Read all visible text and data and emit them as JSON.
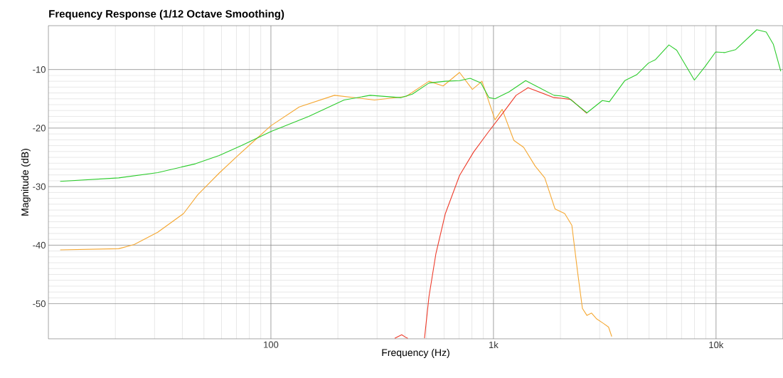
{
  "chart_data": {
    "type": "line",
    "title": "Frequency Response (1/12 Octave Smoothing)",
    "xlabel": "Frequency (Hz)",
    "ylabel": "Magnitude (dB)",
    "log": "x",
    "grid": true,
    "marker": "none",
    "line_style": "solid",
    "xlim": [
      10,
      20000
    ],
    "ylim": [
      -56,
      -2.5
    ],
    "xticks": [
      {
        "value": 100,
        "label": "100"
      },
      {
        "value": 1000,
        "label": "1k"
      },
      {
        "value": 10000,
        "label": "10k"
      }
    ],
    "yticks": [
      -50,
      -40,
      -30,
      -20,
      -10
    ],
    "series": [
      {
        "color": "#f5a833",
        "x": [
          11.3,
          20.7,
          24.3,
          31,
          40.5,
          46.9,
          58.5,
          71,
          82.3,
          100,
          134,
          193,
          292,
          405,
          513,
          594,
          704,
          804,
          888,
          1016,
          1094,
          1235,
          1367,
          1540,
          1700,
          1890,
          2090,
          2250,
          2390,
          2510,
          2630,
          2760,
          2910,
          3130,
          3290,
          3400
        ],
        "values": [
          -40.8,
          -40.6,
          -39.9,
          -37.8,
          -34.6,
          -31.4,
          -27.7,
          -24.7,
          -22.5,
          -19.6,
          -16.4,
          -14.4,
          -15.2,
          -14.6,
          -12,
          -12.8,
          -10.5,
          -13.4,
          -12,
          -18.6,
          -16.8,
          -22.1,
          -23.3,
          -26.5,
          -28.5,
          -33.8,
          -34.6,
          -36.6,
          -44.7,
          -50.8,
          -52,
          -51.6,
          -52.6,
          -53.4,
          -54,
          -55.6
        ]
      },
      {
        "color": "#ee3b2a",
        "x": [
          360,
          365,
          387,
          406,
          412,
          450,
          490,
          513,
          551,
          608,
          704,
          814,
          943,
          1094,
          1264,
          1430,
          1870,
          2014,
          2225,
          2630
        ],
        "values": [
          -55.9,
          -55.8,
          -55.3,
          -55.8,
          -55.9,
          null,
          -55.9,
          -48.8,
          -41.5,
          -34.6,
          -28.1,
          -24.1,
          -20.8,
          -17.6,
          -14.4,
          -13.1,
          -14.8,
          -14.9,
          -15.1,
          -17.5
        ]
      },
      {
        "color": "#2dcc2d",
        "x": [
          11.3,
          20.7,
          31,
          45.8,
          58.5,
          74.6,
          100,
          148,
          213,
          279,
          383,
          432,
          513,
          608,
          704,
          786,
          878,
          955,
          1016,
          1175,
          1395,
          1870,
          2014,
          2165,
          2630,
          3083,
          3318,
          3890,
          4396,
          4968,
          5348,
          6142,
          6656,
          7994,
          8920,
          9960,
          10970,
          12250,
          15250,
          16800,
          18100,
          19540
        ],
        "values": [
          -29.1,
          -28.5,
          -27.6,
          -26.1,
          -24.7,
          -22.9,
          -20.6,
          -18.0,
          -15.2,
          -14.4,
          -14.8,
          -14.2,
          -12.3,
          -12.0,
          -11.9,
          -11.5,
          -12.3,
          -14.8,
          -15.0,
          -13.8,
          -11.9,
          -14.4,
          -14.5,
          -14.8,
          -17.4,
          -15.3,
          -15.5,
          -11.9,
          -10.9,
          -8.9,
          -8.3,
          -5.8,
          -6.7,
          -11.8,
          -9.5,
          -7.0,
          -7.1,
          -6.6,
          -3.2,
          -3.6,
          -5.7,
          -10.3
        ]
      }
    ]
  }
}
